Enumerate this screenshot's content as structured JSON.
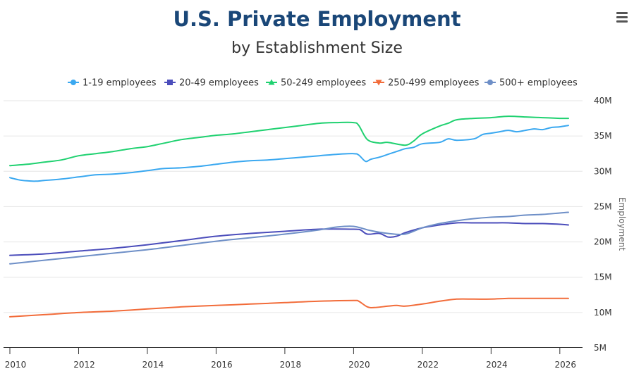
{
  "chart_data": {
    "type": "line",
    "title": "U.S. Private Employment",
    "subtitle": "by Establishment Size",
    "xlabel": "",
    "ylabel": "Employment",
    "xlim": [
      2010,
      2026.25
    ],
    "ylim": [
      5000000,
      40000000
    ],
    "x_ticks": [
      "2010",
      "2012",
      "2014",
      "2016",
      "2018",
      "2020",
      "2022",
      "2024",
      "2026"
    ],
    "y_ticks": [
      "5M",
      "10M",
      "15M",
      "20M",
      "25M",
      "30M",
      "35M",
      "40M"
    ],
    "y_axis_side": "right",
    "grid": "horizontal",
    "legend_position": "top",
    "series": [
      {
        "name": "1-19 employees",
        "color": "#3aa8f0",
        "marker": "circle",
        "points": [
          [
            2010.0,
            29.1
          ],
          [
            2010.25,
            28.8
          ],
          [
            2010.5,
            28.65
          ],
          [
            2010.75,
            28.6
          ],
          [
            2011.0,
            28.7
          ],
          [
            2011.5,
            28.9
          ],
          [
            2012.0,
            29.2
          ],
          [
            2012.5,
            29.5
          ],
          [
            2013.0,
            29.6
          ],
          [
            2013.5,
            29.8
          ],
          [
            2014.0,
            30.1
          ],
          [
            2014.5,
            30.4
          ],
          [
            2015.0,
            30.5
          ],
          [
            2015.5,
            30.7
          ],
          [
            2016.0,
            31.0
          ],
          [
            2016.5,
            31.3
          ],
          [
            2017.0,
            31.5
          ],
          [
            2017.5,
            31.6
          ],
          [
            2018.0,
            31.8
          ],
          [
            2018.5,
            32.0
          ],
          [
            2019.0,
            32.2
          ],
          [
            2019.5,
            32.4
          ],
          [
            2020.0,
            32.5
          ],
          [
            2020.15,
            32.3
          ],
          [
            2020.35,
            31.4
          ],
          [
            2020.5,
            31.7
          ],
          [
            2020.75,
            32.0
          ],
          [
            2021.0,
            32.4
          ],
          [
            2021.25,
            32.8
          ],
          [
            2021.5,
            33.2
          ],
          [
            2021.75,
            33.4
          ],
          [
            2022.0,
            33.9
          ],
          [
            2022.5,
            34.1
          ],
          [
            2022.75,
            34.6
          ],
          [
            2023.0,
            34.4
          ],
          [
            2023.5,
            34.6
          ],
          [
            2023.75,
            35.2
          ],
          [
            2024.0,
            35.4
          ],
          [
            2024.25,
            35.6
          ],
          [
            2024.5,
            35.8
          ],
          [
            2024.75,
            35.6
          ],
          [
            2025.0,
            35.8
          ],
          [
            2025.25,
            36.0
          ],
          [
            2025.5,
            35.9
          ],
          [
            2025.75,
            36.2
          ],
          [
            2026.0,
            36.3
          ],
          [
            2026.25,
            36.5
          ]
        ]
      },
      {
        "name": "20-49 employees",
        "color": "#4b4dbb",
        "marker": "square",
        "points": [
          [
            2010.0,
            18.1
          ],
          [
            2011.0,
            18.3
          ],
          [
            2012.0,
            18.7
          ],
          [
            2013.0,
            19.1
          ],
          [
            2014.0,
            19.6
          ],
          [
            2015.0,
            20.2
          ],
          [
            2016.0,
            20.8
          ],
          [
            2017.0,
            21.2
          ],
          [
            2018.0,
            21.5
          ],
          [
            2019.0,
            21.8
          ],
          [
            2020.0,
            21.8
          ],
          [
            2020.2,
            21.7
          ],
          [
            2020.4,
            21.1
          ],
          [
            2020.75,
            21.2
          ],
          [
            2021.0,
            20.7
          ],
          [
            2021.25,
            20.8
          ],
          [
            2021.5,
            21.3
          ],
          [
            2022.0,
            22.0
          ],
          [
            2022.5,
            22.4
          ],
          [
            2023.0,
            22.7
          ],
          [
            2023.5,
            22.7
          ],
          [
            2024.0,
            22.7
          ],
          [
            2024.5,
            22.7
          ],
          [
            2025.0,
            22.6
          ],
          [
            2025.5,
            22.6
          ],
          [
            2026.0,
            22.5
          ],
          [
            2026.25,
            22.4
          ]
        ]
      },
      {
        "name": "50-249 employees",
        "color": "#1fd170",
        "marker": "triangle",
        "points": [
          [
            2010.0,
            30.8
          ],
          [
            2010.5,
            31.0
          ],
          [
            2011.0,
            31.3
          ],
          [
            2011.5,
            31.6
          ],
          [
            2012.0,
            32.2
          ],
          [
            2012.5,
            32.5
          ],
          [
            2013.0,
            32.8
          ],
          [
            2013.5,
            33.2
          ],
          [
            2014.0,
            33.5
          ],
          [
            2014.5,
            34.0
          ],
          [
            2015.0,
            34.5
          ],
          [
            2015.5,
            34.8
          ],
          [
            2016.0,
            35.1
          ],
          [
            2016.5,
            35.3
          ],
          [
            2017.0,
            35.6
          ],
          [
            2017.5,
            35.9
          ],
          [
            2018.0,
            36.2
          ],
          [
            2018.5,
            36.5
          ],
          [
            2019.0,
            36.8
          ],
          [
            2019.5,
            36.9
          ],
          [
            2020.0,
            36.9
          ],
          [
            2020.15,
            36.5
          ],
          [
            2020.4,
            34.5
          ],
          [
            2020.75,
            34.0
          ],
          [
            2021.0,
            34.1
          ],
          [
            2021.5,
            33.7
          ],
          [
            2021.75,
            34.3
          ],
          [
            2022.0,
            35.3
          ],
          [
            2022.5,
            36.4
          ],
          [
            2022.75,
            36.8
          ],
          [
            2023.0,
            37.3
          ],
          [
            2023.5,
            37.5
          ],
          [
            2024.0,
            37.6
          ],
          [
            2024.5,
            37.8
          ],
          [
            2025.0,
            37.7
          ],
          [
            2025.5,
            37.6
          ],
          [
            2026.0,
            37.5
          ],
          [
            2026.25,
            37.5
          ]
        ]
      },
      {
        "name": "250-499 employees",
        "color": "#f26c3a",
        "marker": "triangle-down",
        "points": [
          [
            2010.0,
            9.4
          ],
          [
            2011.0,
            9.7
          ],
          [
            2012.0,
            10.0
          ],
          [
            2013.0,
            10.2
          ],
          [
            2014.0,
            10.5
          ],
          [
            2015.0,
            10.8
          ],
          [
            2016.0,
            11.0
          ],
          [
            2017.0,
            11.2
          ],
          [
            2018.0,
            11.4
          ],
          [
            2019.0,
            11.6
          ],
          [
            2020.0,
            11.7
          ],
          [
            2020.15,
            11.6
          ],
          [
            2020.4,
            10.8
          ],
          [
            2020.6,
            10.7
          ],
          [
            2021.0,
            10.9
          ],
          [
            2021.25,
            11.0
          ],
          [
            2021.5,
            10.9
          ],
          [
            2022.0,
            11.2
          ],
          [
            2022.5,
            11.6
          ],
          [
            2023.0,
            11.9
          ],
          [
            2023.5,
            11.9
          ],
          [
            2024.0,
            11.9
          ],
          [
            2024.5,
            12.0
          ],
          [
            2025.0,
            12.0
          ],
          [
            2026.25,
            12.0
          ]
        ]
      },
      {
        "name": "500+ employees",
        "color": "#6e8fc7",
        "marker": "circle",
        "points": [
          [
            2010.0,
            16.9
          ],
          [
            2011.0,
            17.4
          ],
          [
            2012.0,
            17.9
          ],
          [
            2013.0,
            18.4
          ],
          [
            2014.0,
            18.9
          ],
          [
            2015.0,
            19.5
          ],
          [
            2016.0,
            20.1
          ],
          [
            2017.0,
            20.6
          ],
          [
            2018.0,
            21.1
          ],
          [
            2019.0,
            21.7
          ],
          [
            2019.5,
            22.1
          ],
          [
            2020.0,
            22.2
          ],
          [
            2020.5,
            21.6
          ],
          [
            2021.0,
            21.2
          ],
          [
            2021.5,
            21.1
          ],
          [
            2022.0,
            22.0
          ],
          [
            2022.5,
            22.6
          ],
          [
            2023.0,
            23.0
          ],
          [
            2023.5,
            23.3
          ],
          [
            2024.0,
            23.5
          ],
          [
            2024.5,
            23.6
          ],
          [
            2025.0,
            23.8
          ],
          [
            2025.5,
            23.9
          ],
          [
            2026.0,
            24.1
          ],
          [
            2026.25,
            24.2
          ]
        ]
      }
    ]
  }
}
